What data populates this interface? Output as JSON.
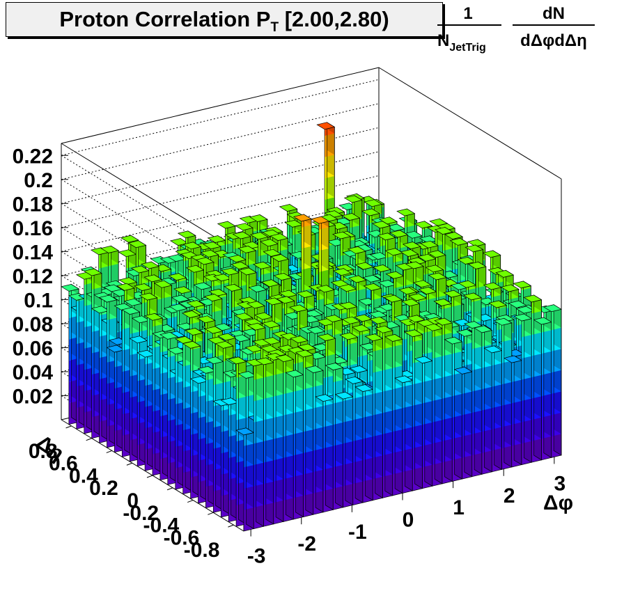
{
  "title": {
    "main": "Proton Correlation P",
    "sub": "T",
    "range": "[2.00,2.80)"
  },
  "zlabel": {
    "frac1_num": "1",
    "frac1_den": "N",
    "frac1_den_sub": "JetTrig",
    "frac2_num": "dN",
    "frac2_den": "dΔφdΔη"
  },
  "chart_data": {
    "type": "lego-3d",
    "xlabel": "Δφ",
    "ylabel": "Δη",
    "x_ticks": [
      "-3",
      "-2",
      "-1",
      "0",
      "1",
      "2",
      "3"
    ],
    "y_ticks": [
      "-0.8",
      "-0.6",
      "-0.4",
      "-0.2",
      "0",
      "0.2",
      "0.4",
      "0.6",
      "0.8"
    ],
    "z_ticks": [
      "0.02",
      "0.04",
      "0.06",
      "0.08",
      "0.1",
      "0.12",
      "0.14",
      "0.16",
      "0.18",
      "0.2",
      "0.22"
    ],
    "xlim": [
      -3.14,
      3.14
    ],
    "ylim": [
      -0.9,
      0.9
    ],
    "zlim": [
      0,
      0.23
    ],
    "nx": 32,
    "ny": 24,
    "base_level": 0.11,
    "noise": 0.03,
    "peaks": [
      {
        "x": -0.1,
        "y": 0.05,
        "z": 0.19
      },
      {
        "x": 0.1,
        "y": -0.05,
        "z": 0.19
      },
      {
        "x": 0.0,
        "y": 0.15,
        "z": 0.15
      },
      {
        "x": 3.0,
        "y": 0.2,
        "z": 0.15
      },
      {
        "x": -3.0,
        "y": 0.75,
        "z": 0.17
      },
      {
        "x": -0.2,
        "y": -0.45,
        "z": 0.13
      },
      {
        "x": 1.9,
        "y": 0.8,
        "z": 0.22
      }
    ],
    "colors": [
      "#5a00c8",
      "#3c00e6",
      "#1c10ff",
      "#0050ff",
      "#00a0ff",
      "#00e6ff",
      "#28ff7e",
      "#6eff00",
      "#c8ff00",
      "#ffe600",
      "#ffa000",
      "#ff5000",
      "#e61e00"
    ]
  }
}
